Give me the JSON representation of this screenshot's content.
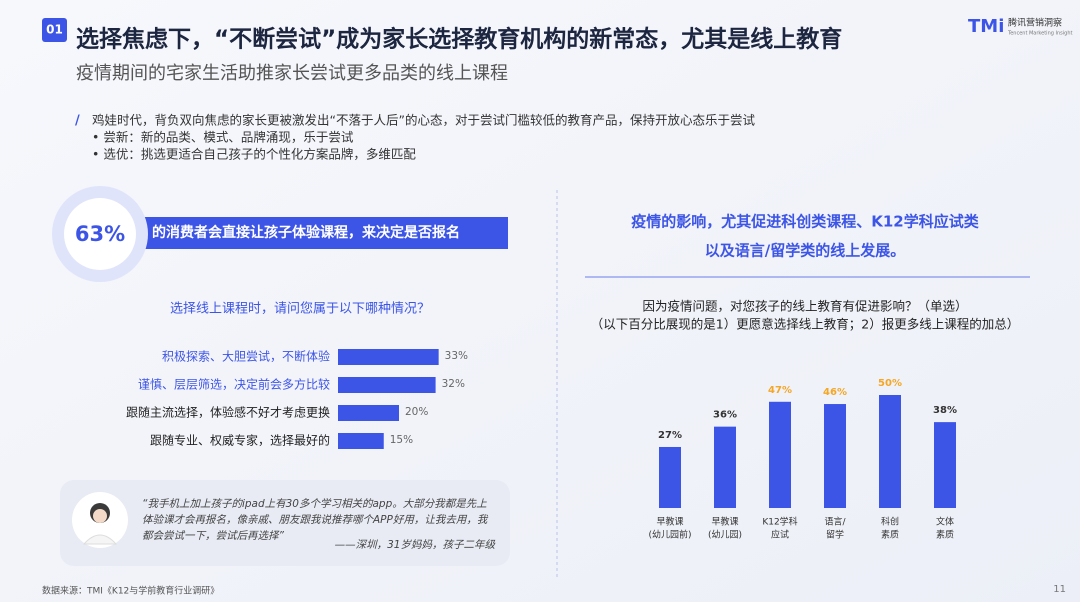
{
  "header": {
    "tag": "01",
    "title": "选择焦虑下，“不断尝试”成为家长选择教育机构的新常态，尤其是线上教育",
    "subtitle": "疫情期间的宅家生活助推家长尝试更多品类的线上课程",
    "logo": "TMi",
    "logo_cn": "腾讯营销洞察",
    "logo_en": "Tencent Marketing Insight"
  },
  "intro": {
    "mark": "/",
    "text": "鸡娃时代，背负双向焦虑的家长更被激发出“不落于人后”的心态，对于尝试门槛较低的教育产品，保持开放心态乐于尝试",
    "bullets": [
      "•  尝新：新的品类、模式、品牌涌现，乐于尝试",
      "•  选优：挑选更适合自己孩子的个性化方案品牌，多维匹配"
    ]
  },
  "callout": {
    "percent": "63%",
    "text": "的消费者会直接让孩子体验课程，来决定是否报名"
  },
  "quote": {
    "lines": [
      "“我手机上加上孩子的ipad上有30多个学习相关的app。大部分我都是先上",
      "体验课才会再报名，像亲戚、朋友跟我说推荐哪个APP好用，让我去用，我",
      "都会尝试一下，尝试后再选择”"
    ],
    "source": "——深圳，31岁妈妈，孩子二年级"
  },
  "chart_data": [
    {
      "type": "barh",
      "title": "选择线上课程时，请问您属于以下哪种情况？",
      "categories": [
        "积极探索、大胆尝试，不断体验",
        "谨慎、层层筛选，决定前会多方比较",
        "跟随主流选择，体验感不好才考虑更换",
        "跟随专业、权威专家，选择最好的"
      ],
      "values": [
        33,
        32,
        20,
        15
      ],
      "value_labels": [
        "33%",
        "32%",
        "20%",
        "15%"
      ],
      "color": "#3d55e6",
      "category_colors": [
        "#3d55e6",
        "#3d55e6",
        "#222222",
        "#222222"
      ]
    },
    {
      "type": "bar",
      "title": [
        "疫情的影响，尤其促进科创类课程、K12学科应试类",
        "以及语言/留学类的线上发展。"
      ],
      "subtitle": [
        "因为疫情问题，对您孩子的线上教育有促进影响？（单选）",
        "（以下百分比展现的是1）更愿意选择线上教育；2）报更多线上课程的加总）"
      ],
      "categories": [
        [
          "早教课",
          "(幼儿园前)"
        ],
        [
          "早教课",
          "(幼儿园)"
        ],
        [
          "K12学科",
          "应试"
        ],
        [
          "语言/",
          "留学"
        ],
        [
          "科创",
          "素质"
        ],
        [
          "文体",
          "素质"
        ]
      ],
      "values": [
        27,
        36,
        47,
        46,
        50,
        38
      ],
      "value_labels": [
        "27%",
        "36%",
        "47%",
        "46%",
        "50%",
        "38%"
      ],
      "color": "#3d55e6",
      "label_colors": [
        "#333333",
        "#333333",
        "#f5a623",
        "#f5a623",
        "#f5a623",
        "#333333"
      ]
    }
  ],
  "footer": {
    "source": "数据来源：TMI《K12与学前教育行业调研》",
    "page": "11"
  }
}
